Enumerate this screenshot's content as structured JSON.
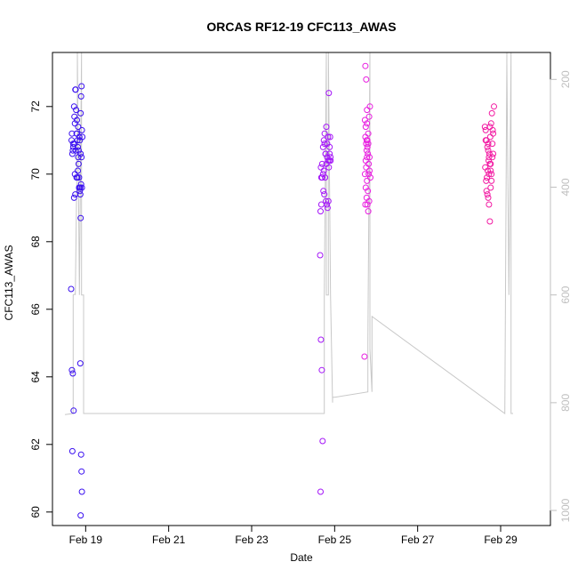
{
  "chart_data": {
    "type": "scatter",
    "title": "ORCAS RF12-19 CFC113_AWAS",
    "xlabel": "Date",
    "ylabel": "CFC113_AWAS",
    "x_unit": "days (0 = Feb 19)",
    "xlim": [
      -0.8,
      11.2
    ],
    "ylim": [
      59.6,
      73.6
    ],
    "x_ticks": [
      {
        "v": 0,
        "label": "Feb 19"
      },
      {
        "v": 2,
        "label": "Feb 21"
      },
      {
        "v": 4,
        "label": "Feb 23"
      },
      {
        "v": 6,
        "label": "Feb 25"
      },
      {
        "v": 8,
        "label": "Feb 27"
      },
      {
        "v": 10,
        "label": "Feb 29"
      }
    ],
    "y_ticks": [
      60,
      62,
      64,
      66,
      68,
      70,
      72
    ],
    "y2_ticks": [
      200,
      400,
      600,
      800,
      1000
    ],
    "y2lim": [
      1028,
      150
    ],
    "grid": false,
    "legend": "none",
    "colors": {
      "axis": "#000000",
      "right_axis": "#bfbfbf",
      "pressure_line": "#c8c8c8",
      "flight_colors": [
        "#3a10f0",
        "#a416f8",
        "#e81ee0",
        "#f21aa2"
      ]
    },
    "series": [
      {
        "color": "#3a10f0",
        "x": [
          -0.35,
          -0.33,
          -0.31,
          -0.29,
          -0.32,
          -0.28,
          -0.27,
          -0.26,
          -0.25,
          -0.24,
          -0.23,
          -0.22,
          -0.21,
          -0.2,
          -0.19,
          -0.18,
          -0.17,
          -0.16,
          -0.15,
          -0.14,
          -0.13,
          -0.12,
          -0.11,
          -0.1,
          -0.09,
          -0.08,
          -0.3,
          -0.27,
          -0.24,
          -0.21,
          -0.18,
          -0.15,
          -0.12,
          -0.1,
          -0.26,
          -0.22,
          -0.19,
          -0.16,
          -0.13,
          -0.11,
          -0.28,
          -0.25,
          -0.2,
          -0.17,
          -0.14,
          -0.12,
          -0.09,
          -0.34,
          -0.31,
          -0.3,
          -0.33,
          -0.32,
          -0.13,
          -0.11,
          -0.1,
          -0.09,
          -0.12
        ],
        "y": [
          66.6,
          64.2,
          64.1,
          63.0,
          61.8,
          72.0,
          71.7,
          71.5,
          72.5,
          72.5,
          71.9,
          71.2,
          71.2,
          71.0,
          70.8,
          70.5,
          70.3,
          69.9,
          69.6,
          69.5,
          69.4,
          71.8,
          72.3,
          72.6,
          71.3,
          71.1,
          70.8,
          70.9,
          70.7,
          71.6,
          71.4,
          71.1,
          70.6,
          70.5,
          70.0,
          69.9,
          70.1,
          69.6,
          69.6,
          69.7,
          69.3,
          69.4,
          69.9,
          70.7,
          71.0,
          68.7,
          69.6,
          71.0,
          70.7,
          70.9,
          71.2,
          70.6,
          64.4,
          61.7,
          61.2,
          60.6,
          59.9
        ]
      },
      {
        "color": "#a416f8",
        "x": [
          5.65,
          5.67,
          5.69,
          5.71,
          5.66,
          5.68,
          5.7,
          5.72,
          5.74,
          5.76,
          5.78,
          5.8,
          5.82,
          5.84,
          5.86,
          5.88,
          5.9,
          5.73,
          5.75,
          5.77,
          5.79,
          5.81,
          5.83,
          5.85,
          5.87,
          5.89,
          5.66,
          5.7,
          5.74,
          5.78,
          5.82,
          5.86,
          5.72,
          5.76,
          5.8,
          5.84,
          5.88,
          5.9,
          5.68,
          5.67
        ],
        "y": [
          67.6,
          65.1,
          64.2,
          62.1,
          60.6,
          69.9,
          70.3,
          70.8,
          71.0,
          70.9,
          70.6,
          70.3,
          70.5,
          70.4,
          70.2,
          70.6,
          70.4,
          69.5,
          69.4,
          69.9,
          69.2,
          69.1,
          69.0,
          69.2,
          70.4,
          71.1,
          68.9,
          69.9,
          70.1,
          70.6,
          70.9,
          72.4,
          70.0,
          71.2,
          71.4,
          71.1,
          70.8,
          70.5,
          69.1,
          70.2
        ]
      },
      {
        "color": "#e81ee0",
        "x": [
          6.72,
          6.74,
          6.76,
          6.78,
          6.73,
          6.75,
          6.77,
          6.79,
          6.81,
          6.83,
          6.85,
          6.74,
          6.76,
          6.78,
          6.8,
          6.82,
          6.84,
          6.86,
          6.73,
          6.75,
          6.77,
          6.79,
          6.81,
          6.83,
          6.75,
          6.77,
          6.79,
          6.81,
          6.76,
          6.78,
          6.8,
          6.82,
          6.84,
          6.74,
          6.78
        ],
        "y": [
          64.6,
          73.2,
          72.8,
          71.9,
          71.6,
          71.4,
          71.0,
          70.8,
          71.2,
          71.7,
          72.0,
          71.1,
          70.9,
          70.5,
          70.6,
          70.3,
          70.1,
          69.9,
          70.0,
          69.6,
          69.3,
          69.1,
          68.9,
          69.2,
          70.4,
          70.7,
          71.0,
          70.9,
          70.2,
          69.8,
          69.5,
          70.0,
          70.5,
          69.1,
          71.5
        ]
      },
      {
        "color": "#f21aa2",
        "x": [
          9.62,
          9.64,
          9.66,
          9.68,
          9.7,
          9.72,
          9.74,
          9.76,
          9.78,
          9.8,
          9.82,
          9.84,
          9.63,
          9.65,
          9.67,
          9.69,
          9.71,
          9.73,
          9.75,
          9.77,
          9.79,
          9.81,
          9.66,
          9.68,
          9.7,
          9.72,
          9.74,
          9.76,
          9.78,
          9.64,
          9.7,
          9.74,
          9.8,
          9.82,
          9.76,
          9.72
        ],
        "y": [
          71.4,
          71.3,
          71.0,
          70.8,
          70.7,
          70.5,
          70.3,
          70.1,
          70.0,
          70.5,
          71.2,
          72.0,
          70.2,
          69.8,
          69.9,
          70.1,
          70.4,
          70.6,
          71.1,
          71.5,
          71.8,
          71.3,
          69.5,
          69.4,
          69.3,
          69.1,
          68.6,
          69.6,
          69.8,
          71.0,
          70.9,
          71.4,
          70.9,
          70.6,
          70.3,
          70.0
        ]
      }
    ],
    "pressure_trace": {
      "x": [
        -0.5,
        -0.3,
        -0.3,
        -0.25,
        -0.25,
        -0.2,
        -0.2,
        -0.15,
        -0.15,
        -0.1,
        -0.1,
        -0.05,
        -0.05,
        0.0,
        5.75,
        5.75,
        5.8,
        5.8,
        5.85,
        5.85,
        5.9,
        5.9,
        5.95,
        5.95,
        6.0,
        6.0,
        6.8,
        6.8,
        6.85,
        6.85,
        6.9,
        6.9,
        10.1,
        10.1,
        10.15,
        10.15,
        10.2,
        10.2,
        10.25,
        10.25,
        10.3,
        10.3
      ],
      "y": [
        822,
        820,
        600,
        598,
        600,
        300,
        150,
        600,
        600,
        150,
        600,
        600,
        820,
        820,
        820,
        600,
        150,
        600,
        600,
        150,
        600,
        600,
        800,
        790,
        790,
        790,
        780,
        690,
        150,
        700,
        780,
        640,
        820,
        820,
        150,
        170,
        600,
        600,
        150,
        820,
        820,
        820
      ]
    }
  }
}
